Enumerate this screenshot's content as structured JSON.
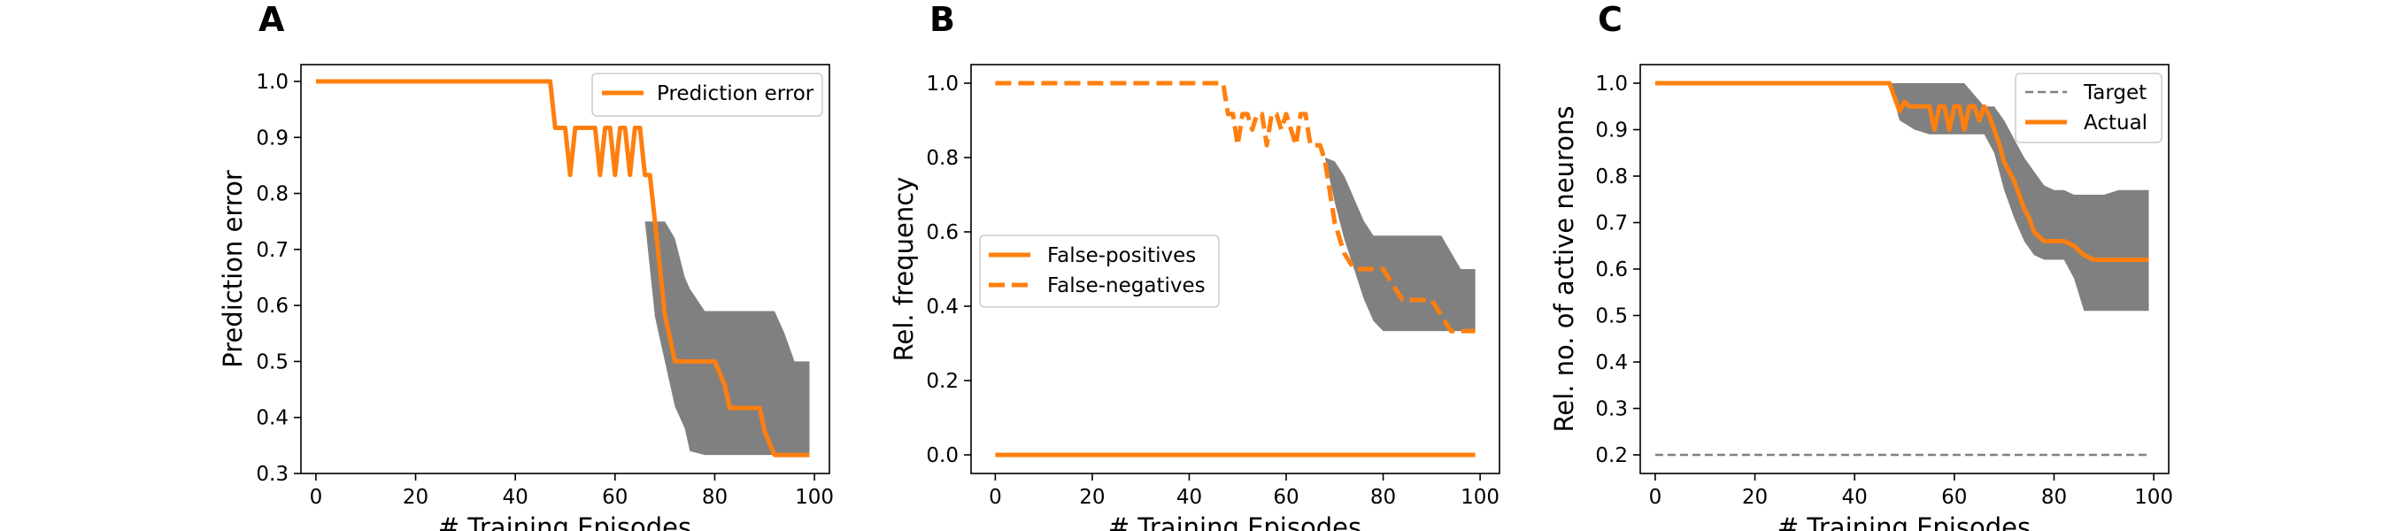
{
  "chart_data": [
    {
      "panel": "A",
      "type": "line",
      "xlabel": "# Training Episodes",
      "ylabel": "Prediction error",
      "xlim": [
        -3,
        103
      ],
      "ylim": [
        0.3,
        1.03
      ],
      "xticks": [
        0,
        20,
        40,
        60,
        80,
        100
      ],
      "yticks": [
        0.3,
        0.4,
        0.5,
        0.6,
        0.7,
        0.8,
        0.9,
        1.0
      ],
      "tick_decimals": 1,
      "legend": "top-right",
      "band": {
        "color": "#808080",
        "x": [
          66,
          68,
          70,
          72,
          74,
          75,
          78,
          80,
          82,
          84,
          86,
          88,
          90,
          92,
          94,
          96,
          99
        ],
        "lower": [
          0.75,
          0.58,
          0.5,
          0.42,
          0.38,
          0.34,
          0.333,
          0.333,
          0.333,
          0.333,
          0.333,
          0.333,
          0.333,
          0.333,
          0.333,
          0.333,
          0.333
        ],
        "upper": [
          0.75,
          0.75,
          0.75,
          0.72,
          0.65,
          0.63,
          0.59,
          0.59,
          0.59,
          0.59,
          0.59,
          0.59,
          0.59,
          0.59,
          0.55,
          0.5,
          0.5
        ]
      },
      "series": [
        {
          "name": "Prediction error",
          "color": "#ff7f0e",
          "dash": "solid",
          "x": [
            0,
            47,
            48,
            50,
            51,
            52,
            56,
            57,
            58,
            59,
            60,
            61,
            62,
            63,
            64,
            65,
            66,
            67,
            68,
            69,
            70,
            71,
            72,
            73,
            74,
            75,
            76,
            80,
            82,
            83,
            86,
            88,
            89,
            90,
            92,
            94,
            95,
            99
          ],
          "y": [
            1.0,
            1.0,
            0.917,
            0.917,
            0.833,
            0.917,
            0.917,
            0.833,
            0.917,
            0.917,
            0.833,
            0.917,
            0.917,
            0.833,
            0.917,
            0.917,
            0.833,
            0.833,
            0.75,
            0.667,
            0.583,
            0.542,
            0.5,
            0.5,
            0.5,
            0.5,
            0.5,
            0.5,
            0.458,
            0.417,
            0.417,
            0.417,
            0.417,
            0.375,
            0.333,
            0.333,
            0.333,
            0.333
          ]
        }
      ]
    },
    {
      "panel": "B",
      "type": "line",
      "xlabel": "# Training Episodes",
      "ylabel": "Rel. frequency",
      "xlim": [
        -5,
        104
      ],
      "ylim": [
        -0.05,
        1.05
      ],
      "xticks": [
        0,
        20,
        40,
        60,
        80,
        100
      ],
      "yticks": [
        0.0,
        0.2,
        0.4,
        0.6,
        0.8,
        1.0
      ],
      "tick_decimals": 1,
      "legend": "center-left",
      "band": {
        "color": "#808080",
        "x": [
          68,
          70,
          72,
          74,
          76,
          78,
          80,
          85,
          90,
          92,
          96,
          99
        ],
        "lower": [
          0.8,
          0.68,
          0.58,
          0.5,
          0.42,
          0.36,
          0.333,
          0.333,
          0.333,
          0.333,
          0.333,
          0.333
        ],
        "upper": [
          0.8,
          0.79,
          0.75,
          0.69,
          0.63,
          0.59,
          0.59,
          0.59,
          0.59,
          0.59,
          0.5,
          0.5
        ]
      },
      "series": [
        {
          "name": "False-positives",
          "color": "#ff7f0e",
          "dash": "solid",
          "x": [
            0,
            99
          ],
          "y": [
            0.0,
            0.0
          ]
        },
        {
          "name": "False-negatives",
          "color": "#ff7f0e",
          "dash": "dashed",
          "x": [
            0,
            47,
            48,
            49,
            50,
            51,
            52,
            53,
            54,
            55,
            56,
            57,
            58,
            59,
            60,
            61,
            62,
            63,
            64,
            65,
            66,
            67,
            68,
            69,
            70,
            71,
            72,
            74,
            76,
            78,
            80,
            82,
            84,
            86,
            88,
            90,
            92,
            94,
            96,
            98,
            99
          ],
          "y": [
            1.0,
            1.0,
            0.917,
            0.917,
            0.833,
            0.917,
            0.917,
            0.875,
            0.917,
            0.917,
            0.833,
            0.917,
            0.917,
            0.875,
            0.917,
            0.875,
            0.833,
            0.917,
            0.917,
            0.833,
            0.833,
            0.833,
            0.792,
            0.708,
            0.625,
            0.583,
            0.542,
            0.5,
            0.5,
            0.5,
            0.5,
            0.458,
            0.417,
            0.417,
            0.417,
            0.417,
            0.375,
            0.333,
            0.333,
            0.333,
            0.333
          ]
        }
      ]
    },
    {
      "panel": "C",
      "type": "line",
      "xlabel": "# Training Episodes",
      "ylabel": "Rel. no. of active neurons",
      "xlim": [
        -3,
        103
      ],
      "ylim": [
        0.16,
        1.04
      ],
      "xticks": [
        0,
        20,
        40,
        60,
        80,
        100
      ],
      "yticks": [
        0.2,
        0.3,
        0.4,
        0.5,
        0.6,
        0.7,
        0.8,
        0.9,
        1.0
      ],
      "tick_decimals": 1,
      "legend": "top-right",
      "band": {
        "color": "#808080",
        "x": [
          47,
          49,
          52,
          55,
          58,
          62,
          66,
          68,
          70,
          72,
          74,
          76,
          78,
          80,
          82,
          84,
          86,
          88,
          90,
          93,
          95,
          99
        ],
        "lower": [
          1.0,
          0.92,
          0.9,
          0.89,
          0.89,
          0.89,
          0.89,
          0.85,
          0.77,
          0.71,
          0.66,
          0.63,
          0.62,
          0.62,
          0.62,
          0.58,
          0.51,
          0.51,
          0.51,
          0.51,
          0.51,
          0.51
        ],
        "upper": [
          1.0,
          1.0,
          1.0,
          1.0,
          1.0,
          1.0,
          0.95,
          0.95,
          0.92,
          0.88,
          0.84,
          0.81,
          0.78,
          0.77,
          0.77,
          0.76,
          0.76,
          0.76,
          0.76,
          0.77,
          0.77,
          0.77
        ]
      },
      "series": [
        {
          "name": "Target",
          "color": "#808080",
          "dash": "dashed",
          "x": [
            0,
            99
          ],
          "y": [
            0.2,
            0.2
          ]
        },
        {
          "name": "Actual",
          "color": "#ff7f0e",
          "dash": "solid",
          "x": [
            0,
            47,
            48,
            49,
            50,
            51,
            52,
            53,
            54,
            55,
            56,
            57,
            58,
            59,
            60,
            61,
            62,
            63,
            64,
            65,
            66,
            67,
            68,
            69,
            70,
            71,
            72,
            73,
            74,
            75,
            76,
            78,
            80,
            82,
            84,
            86,
            88,
            90,
            92,
            94,
            96,
            99
          ],
          "y": [
            1.0,
            1.0,
            0.97,
            0.94,
            0.96,
            0.95,
            0.95,
            0.95,
            0.95,
            0.95,
            0.9,
            0.95,
            0.95,
            0.9,
            0.95,
            0.95,
            0.9,
            0.95,
            0.95,
            0.92,
            0.95,
            0.93,
            0.9,
            0.87,
            0.83,
            0.81,
            0.79,
            0.76,
            0.73,
            0.71,
            0.68,
            0.66,
            0.66,
            0.66,
            0.65,
            0.63,
            0.62,
            0.62,
            0.62,
            0.62,
            0.62,
            0.62
          ]
        }
      ]
    }
  ]
}
